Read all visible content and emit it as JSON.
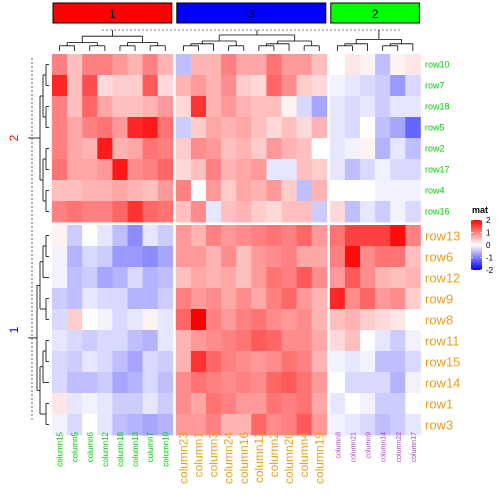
{
  "chart_data": {
    "type": "heatmap",
    "legend": {
      "title": "mat",
      "ticks": [
        "2",
        "1",
        "0",
        "-1",
        "-2"
      ],
      "tick_values": [
        2,
        1,
        0,
        -1,
        -2
      ],
      "colors": {
        "high": "#ff0000",
        "mid": "#ffffff",
        "low": "#0000ff"
      }
    },
    "column_groups": [
      {
        "label": "1",
        "color": "#ff0000",
        "columns": [
          "column15",
          "column5",
          "column6",
          "column12",
          "column18",
          "column13",
          "column7",
          "column10"
        ]
      },
      {
        "label": "3",
        "color": "#0000ff",
        "columns": [
          "column23",
          "column1",
          "column3",
          "column24",
          "column16",
          "column11",
          "column2",
          "column20",
          "column4",
          "column19"
        ]
      },
      {
        "label": "2",
        "color": "#00ff00",
        "columns": [
          "column8",
          "column21",
          "column9",
          "column14",
          "column22",
          "column17"
        ]
      }
    ],
    "row_groups": [
      {
        "label": "2",
        "color": "#ff0000",
        "rows": [
          "row10",
          "row7",
          "row18",
          "row5",
          "row2",
          "row17",
          "row4",
          "row16"
        ]
      },
      {
        "label": "1",
        "color": "#0000ff",
        "rows": [
          "row13",
          "row6",
          "row12",
          "row9",
          "row8",
          "row11",
          "row15",
          "row14",
          "row1",
          "row3"
        ]
      }
    ],
    "group_label_colors": {
      "column_group_1": "#00cc00",
      "column_group_3": "#e6a020",
      "column_group_2": "#b040c0",
      "row_group_2": "#00cc00",
      "row_group_1": "#e6a020"
    },
    "values": [
      [
        1.0,
        0.5,
        1.0,
        1.0,
        0.8,
        0.6,
        1.0,
        0.6,
        -0.5,
        0.6,
        0.6,
        1.0,
        0.7,
        0.7,
        1.1,
        0.8,
        0.8,
        0.5,
        0.0,
        0.2,
        0.1,
        -0.5,
        0.1,
        0.2
      ],
      [
        1.7,
        0.5,
        1.4,
        0.3,
        0.4,
        0.4,
        1.3,
        0.3,
        0.6,
        0.8,
        0.6,
        0.9,
        0.4,
        0.3,
        1.2,
        0.9,
        0.4,
        0.3,
        -0.1,
        -0.2,
        -0.3,
        -0.4,
        -0.8,
        -0.3
      ],
      [
        1.0,
        0.5,
        1.2,
        0.7,
        0.5,
        0.5,
        0.6,
        0.8,
        0.3,
        1.6,
        0.6,
        0.8,
        0.6,
        0.5,
        0.5,
        0.1,
        -0.3,
        -0.7,
        -0.2,
        -0.3,
        -0.2,
        -0.4,
        -0.2,
        -0.2
      ],
      [
        1.0,
        0.7,
        1.0,
        1.1,
        0.8,
        1.7,
        1.8,
        1.1,
        -0.4,
        0.4,
        0.7,
        0.6,
        0.7,
        0.5,
        0.3,
        0.5,
        0.3,
        0.6,
        -0.2,
        -0.3,
        0.0,
        -0.5,
        -0.7,
        -1.2
      ],
      [
        1.0,
        0.7,
        0.6,
        1.8,
        0.6,
        0.7,
        1.1,
        1.0,
        0.4,
        0.9,
        0.8,
        0.5,
        0.6,
        0.4,
        0.8,
        0.6,
        0.5,
        0.0,
        -0.2,
        -0.1,
        0.1,
        -0.6,
        -0.2,
        -0.5
      ],
      [
        1.1,
        0.7,
        0.7,
        0.8,
        1.8,
        0.9,
        1.0,
        1.2,
        0.3,
        0.5,
        1.0,
        0.6,
        0.7,
        0.8,
        -0.2,
        -0.2,
        0.5,
        0.4,
        -0.2,
        -0.5,
        -0.3,
        -0.1,
        -0.3,
        -0.3
      ],
      [
        0.5,
        0.5,
        0.6,
        0.6,
        0.7,
        0.6,
        0.5,
        0.8,
        1.0,
        0.0,
        0.8,
        0.4,
        0.7,
        0.6,
        0.8,
        0.4,
        -0.5,
        0.6,
        0.0,
        0.0,
        0.0,
        -0.1,
        -0.1,
        -0.1
      ],
      [
        1.0,
        1.1,
        1.0,
        1.0,
        1.2,
        1.6,
        1.2,
        1.1,
        0.5,
        0.9,
        -0.2,
        0.5,
        0.6,
        0.4,
        0.3,
        0.5,
        0.5,
        -0.4,
        0.3,
        -0.5,
        -0.2,
        -0.4,
        -0.1,
        -0.3
      ],
      [
        0.1,
        -0.4,
        0.0,
        -0.2,
        -0.5,
        -0.9,
        -0.2,
        -0.4,
        0.8,
        0.6,
        1.0,
        0.8,
        0.9,
        1.0,
        1.1,
        1.0,
        1.2,
        0.8,
        1.1,
        1.5,
        1.5,
        1.5,
        1.9,
        1.0
      ],
      [
        -0.1,
        -0.6,
        -0.3,
        -0.4,
        -0.8,
        -0.8,
        -0.9,
        -0.7,
        0.8,
        0.8,
        0.6,
        0.9,
        0.5,
        0.8,
        0.9,
        1.0,
        0.7,
        0.7,
        1.0,
        1.9,
        0.9,
        1.1,
        1.1,
        0.5
      ],
      [
        -0.1,
        -0.5,
        -0.4,
        -0.7,
        -0.6,
        -0.3,
        -0.6,
        -0.5,
        0.5,
        0.7,
        0.6,
        0.7,
        0.5,
        0.8,
        1.1,
        1.0,
        1.3,
        0.9,
        0.8,
        1.3,
        0.9,
        0.6,
        0.5,
        0.6
      ],
      [
        -0.4,
        -0.5,
        -0.2,
        -0.3,
        -0.3,
        -0.6,
        -0.6,
        -0.4,
        1.0,
        0.8,
        0.9,
        0.7,
        0.9,
        0.7,
        1.0,
        1.2,
        0.8,
        0.6,
        1.7,
        0.9,
        1.2,
        0.8,
        0.9,
        0.4
      ],
      [
        -0.3,
        0.4,
        0.0,
        -0.1,
        -0.3,
        -0.2,
        0.1,
        -0.2,
        1.2,
        2.0,
        1.0,
        0.8,
        1.0,
        1.1,
        0.9,
        0.8,
        0.9,
        0.6,
        0.5,
        0.6,
        0.4,
        0.3,
        0.2,
        0.0
      ],
      [
        -0.2,
        -0.3,
        -0.4,
        -0.3,
        -0.3,
        -0.5,
        -0.6,
        -0.2,
        0.6,
        0.8,
        0.9,
        1.0,
        1.1,
        1.3,
        1.2,
        0.9,
        0.9,
        0.7,
        0.3,
        0.5,
        0.0,
        -0.2,
        -0.4,
        -0.1
      ],
      [
        -0.3,
        -0.4,
        -0.2,
        -0.3,
        -0.5,
        -0.7,
        -0.3,
        -0.4,
        0.6,
        1.6,
        1.2,
        1.0,
        0.9,
        0.8,
        0.9,
        1.1,
        1.0,
        0.6,
        -0.1,
        -0.2,
        -0.1,
        -0.5,
        -0.5,
        -0.3
      ],
      [
        -0.3,
        -0.5,
        -0.5,
        -0.4,
        -0.7,
        -0.6,
        -0.3,
        -0.5,
        0.9,
        1.1,
        1.0,
        0.9,
        1.0,
        0.9,
        1.2,
        1.3,
        1.1,
        0.8,
        0.0,
        -0.3,
        -0.3,
        -0.3,
        -0.6,
        -0.1
      ],
      [
        0.2,
        -0.2,
        -0.1,
        -0.2,
        -0.4,
        -0.4,
        -0.2,
        -0.4,
        0.9,
        0.7,
        1.1,
        1.0,
        0.8,
        0.8,
        1.1,
        1.0,
        1.1,
        0.7,
        -0.2,
        0.0,
        -0.1,
        -0.4,
        -0.4,
        0.0
      ],
      [
        -0.1,
        -0.3,
        0.0,
        -0.2,
        -0.5,
        -0.6,
        -0.7,
        -0.6,
        0.8,
        0.8,
        1.0,
        0.6,
        0.6,
        1.2,
        0.9,
        1.0,
        1.3,
        0.8,
        -0.1,
        -0.2,
        -0.3,
        -0.5,
        -0.4,
        -0.2
      ]
    ]
  }
}
